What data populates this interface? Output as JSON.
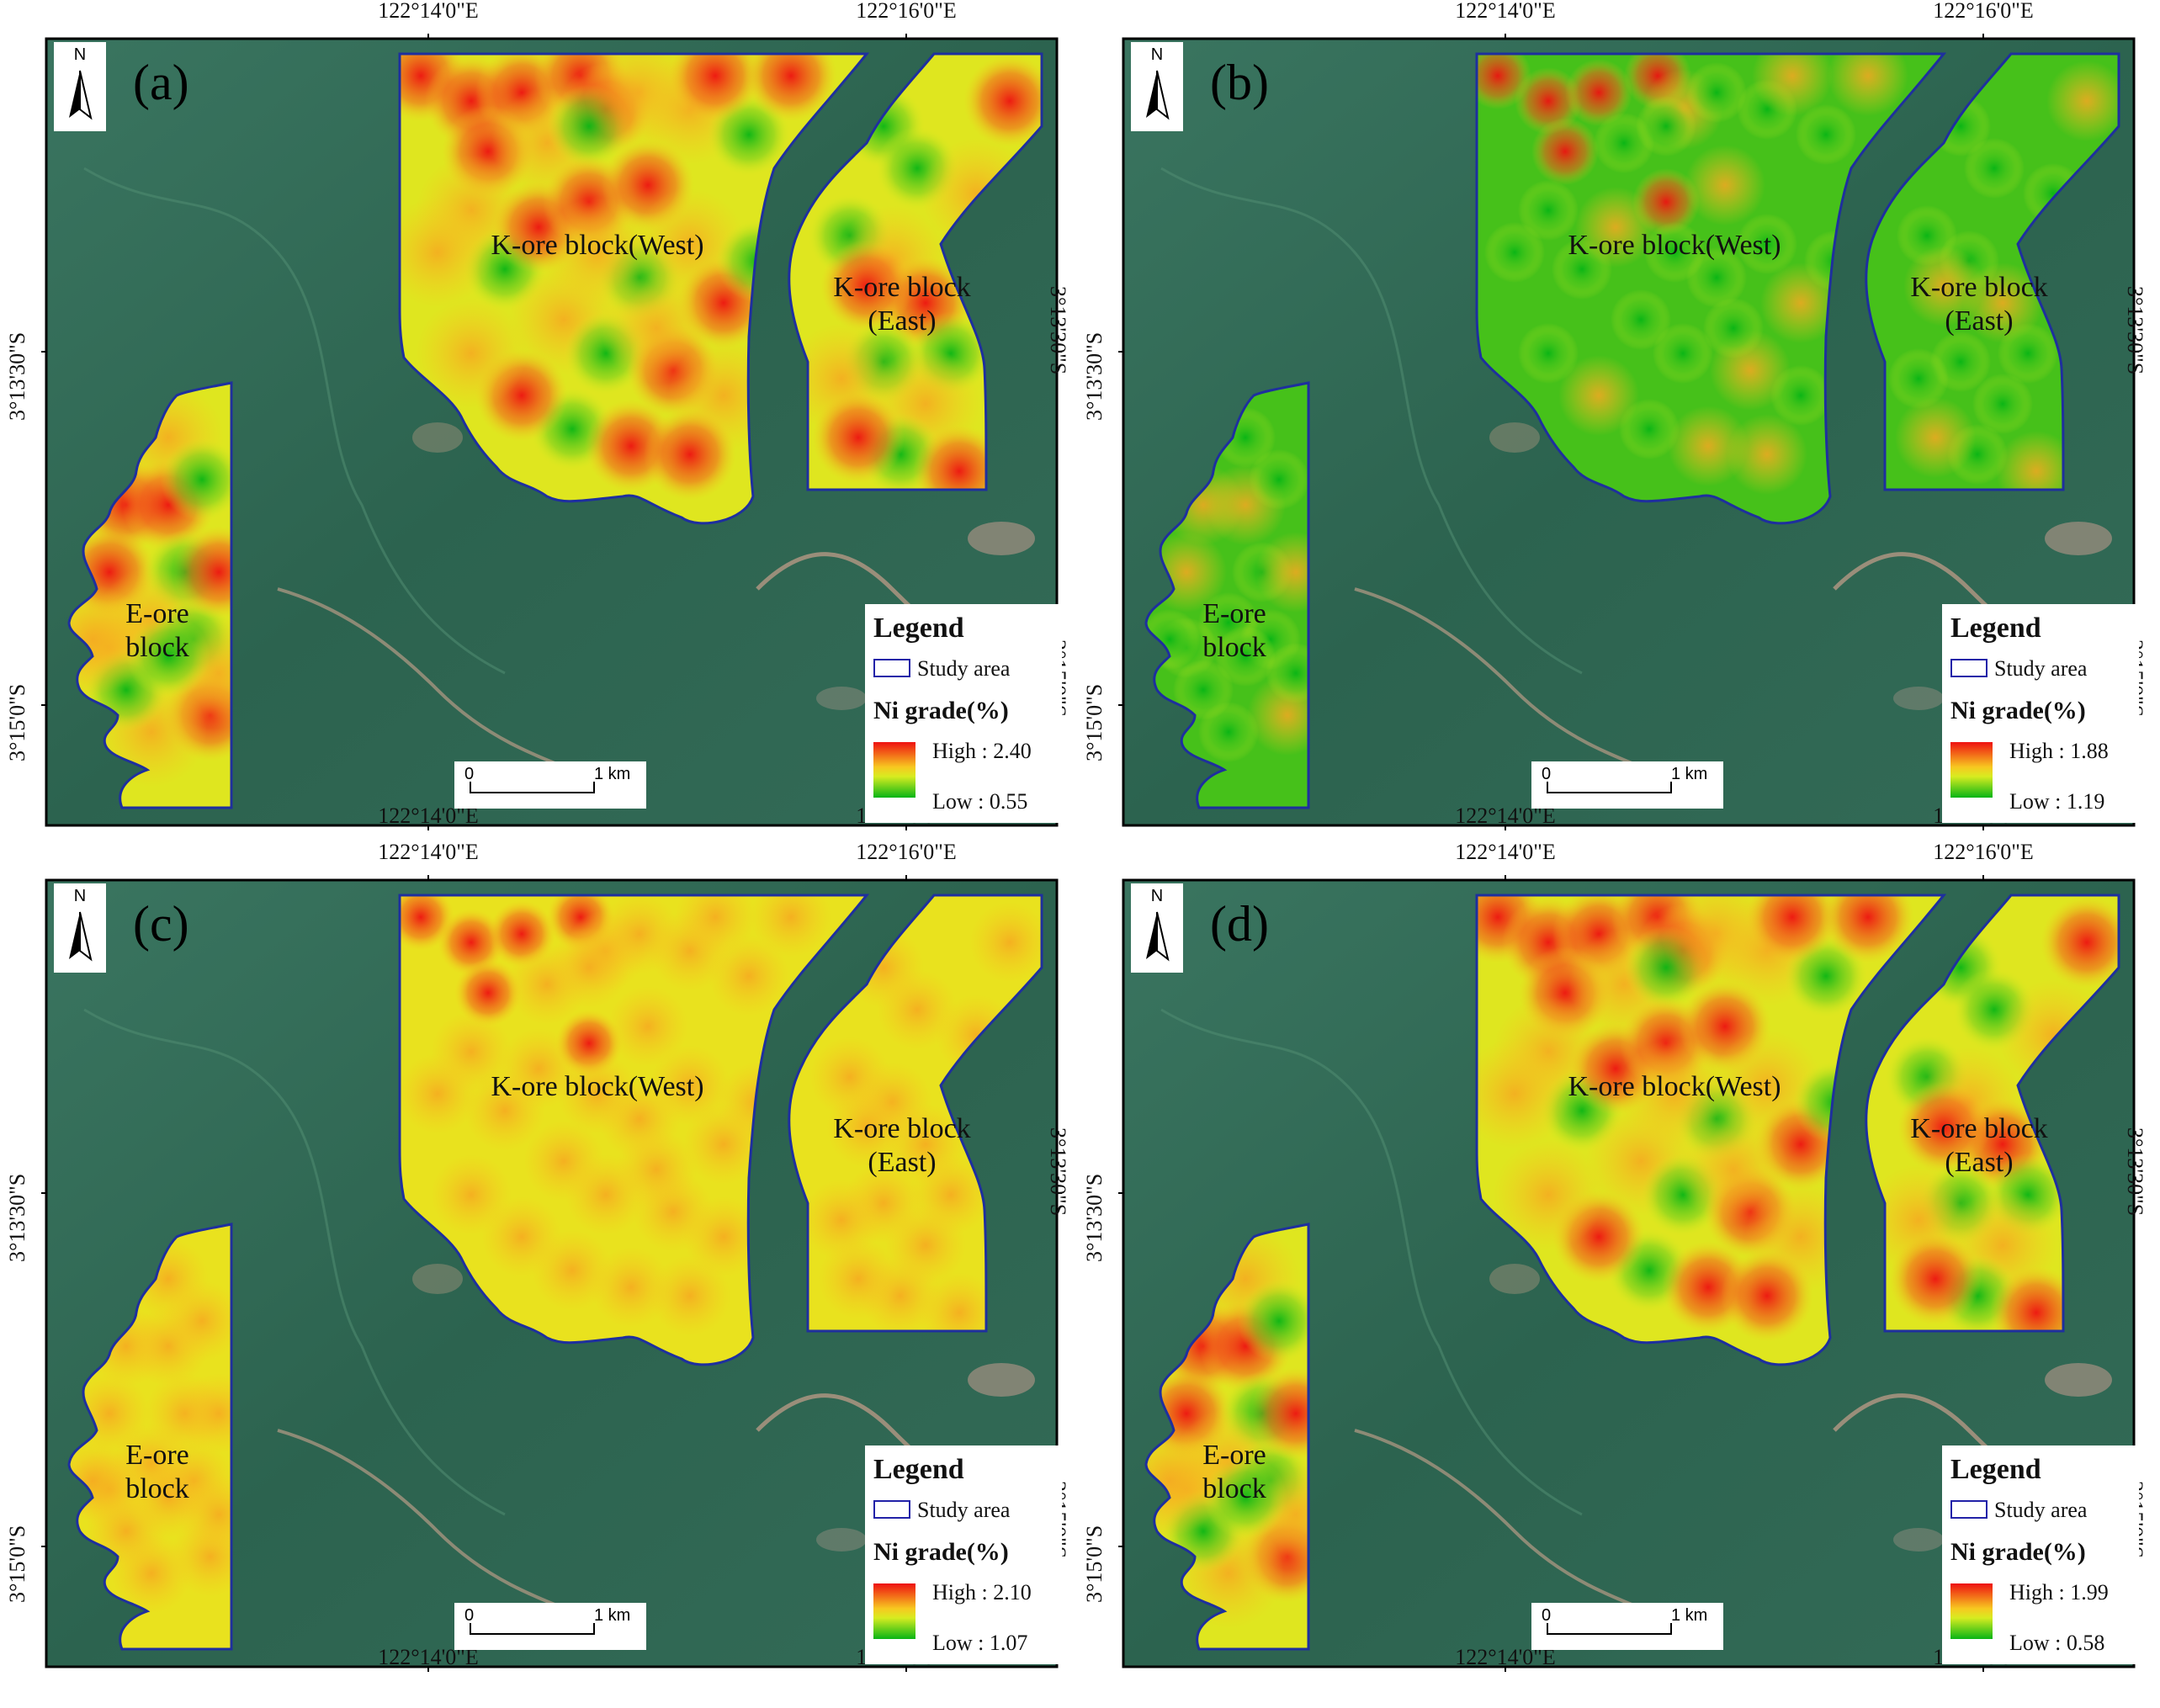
{
  "axes": {
    "lon_labels": [
      "122°14'0\"E",
      "122°16'0\"E"
    ],
    "lat_labels": [
      "3°13'30\"S",
      "3°15'0\"S"
    ]
  },
  "common": {
    "north": "N",
    "legend_title": "Legend",
    "study_area": "Study area",
    "ni_grade": "Ni grade(%)",
    "scale_zero": "0",
    "scale_km": "1 km",
    "block_west": "K-ore block(West)",
    "block_east_1": "K-ore block",
    "block_east_2": "(East)",
    "block_e_1": "E-ore",
    "block_e_2": "block"
  },
  "panels": [
    {
      "id": "a",
      "letter": "(a)",
      "high": "High : 2.40",
      "low": "Low  : 0.55",
      "pattern": "blotchy"
    },
    {
      "id": "b",
      "letter": "(b)",
      "high": "High : 1.88",
      "low": "Low  : 1.19",
      "pattern": "green"
    },
    {
      "id": "c",
      "letter": "(c)",
      "high": "High : 2.10",
      "low": "Low  : 1.07",
      "pattern": "yellow"
    },
    {
      "id": "d",
      "letter": "(d)",
      "high": "High : 1.99",
      "low": "Low  : 0.58",
      "pattern": "blotchy"
    }
  ],
  "colors": {
    "outline": "#1e2f9e",
    "high": "#ee1111",
    "mid": "#f7c820",
    "low": "#08b515",
    "terrain": "#2f6a52"
  }
}
